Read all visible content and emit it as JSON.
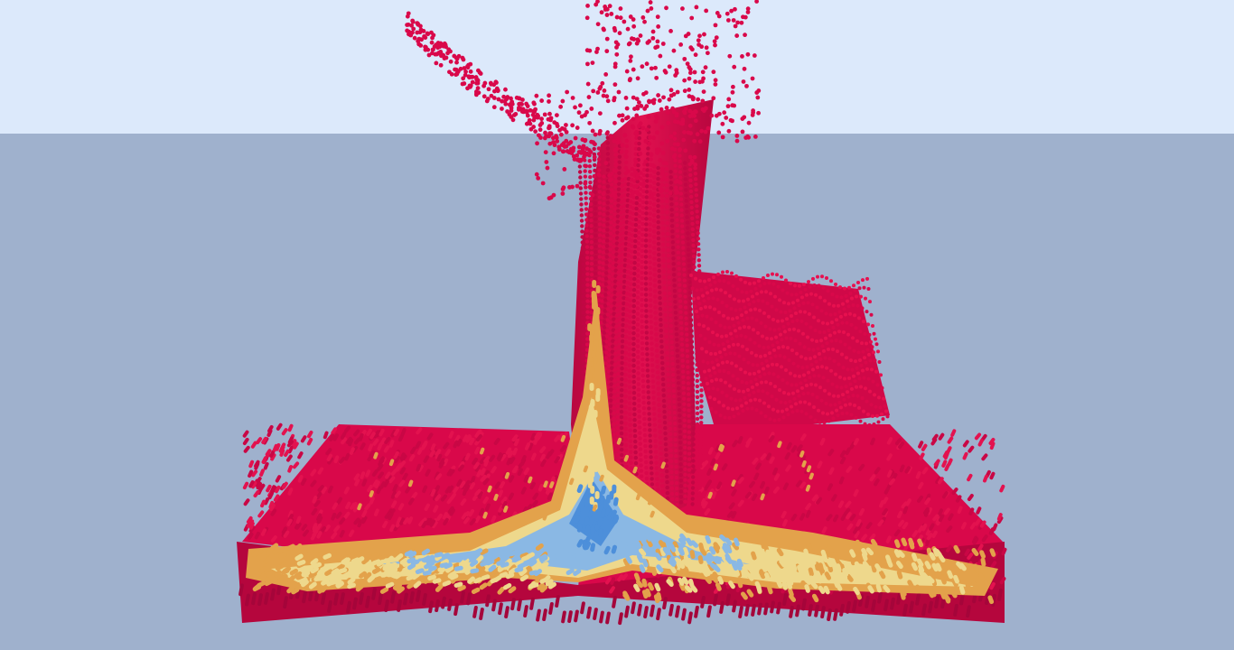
{
  "scene": {
    "sky_color": "#dce9fb",
    "ground_color": "#9fb1cd",
    "particle_colors": {
      "red": "#d9084a",
      "orange": "#e3a24b",
      "yellow": "#eed88c",
      "light_blue": "#8ab8e4",
      "blue": "#4d8fda"
    }
  }
}
